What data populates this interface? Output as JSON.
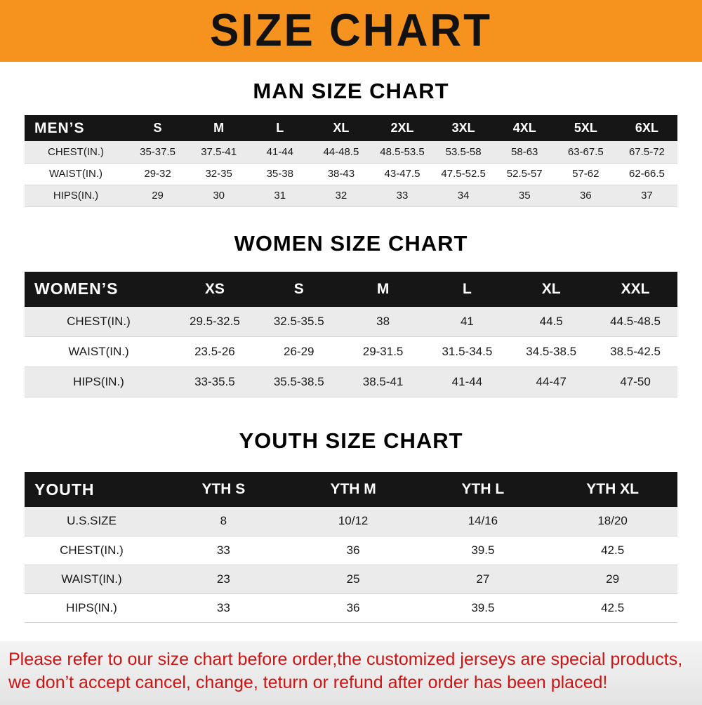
{
  "banner": {
    "title": "SIZE CHART",
    "bg_color": "#F6921E",
    "text_color": "#121212"
  },
  "sections": [
    {
      "heading": "MAN SIZE CHART",
      "table": {
        "header": [
          "MEN’S",
          "S",
          "M",
          "L",
          "XL",
          "2XL",
          "3XL",
          "4XL",
          "5XL",
          "6XL"
        ],
        "rows": [
          [
            "CHEST(IN.)",
            "35-37.5",
            "37.5-41",
            "41-44",
            "44-48.5",
            "48.5-53.5",
            "53.5-58",
            "58-63",
            "63-67.5",
            "67.5-72"
          ],
          [
            "WAIST(IN.)",
            "29-32",
            "32-35",
            "35-38",
            "38-43",
            "43-47.5",
            "47.5-52.5",
            "52.5-57",
            "57-62",
            "62-66.5"
          ],
          [
            "HIPS(IN.)",
            "29",
            "30",
            "31",
            "32",
            "33",
            "34",
            "35",
            "36",
            "37"
          ]
        ]
      }
    },
    {
      "heading": "WOMEN SIZE CHART",
      "table": {
        "header": [
          "WOMEN’S",
          "XS",
          "S",
          "M",
          "L",
          "XL",
          "XXL"
        ],
        "rows": [
          [
            "CHEST(IN.)",
            "29.5-32.5",
            "32.5-35.5",
            "38",
            "41",
            "44.5",
            "44.5-48.5"
          ],
          [
            "WAIST(IN.)",
            "23.5-26",
            "26-29",
            "29-31.5",
            "31.5-34.5",
            "34.5-38.5",
            "38.5-42.5"
          ],
          [
            "HIPS(IN.)",
            "33-35.5",
            "35.5-38.5",
            "38.5-41",
            "41-44",
            "44-47",
            "47-50"
          ]
        ]
      }
    },
    {
      "heading": "YOUTH SIZE CHART",
      "table": {
        "header": [
          "YOUTH",
          "YTH S",
          "YTH M",
          "YTH L",
          "YTH XL"
        ],
        "rows": [
          [
            "U.S.SIZE",
            "8",
            "10/12",
            "14/16",
            "18/20"
          ],
          [
            "CHEST(IN.)",
            "33",
            "36",
            "39.5",
            "42.5"
          ],
          [
            "WAIST(IN.)",
            "23",
            "25",
            "27",
            "29"
          ],
          [
            "HIPS(IN.)",
            "33",
            "36",
            "39.5",
            "42.5"
          ]
        ]
      }
    }
  ],
  "footer": {
    "line1": "Please refer to our size chart before order,the customized jerseys are special products,",
    "line2": "we don’t accept cancel, change, teturn or refund after order has been placed!",
    "text_color": "#CF1313"
  }
}
